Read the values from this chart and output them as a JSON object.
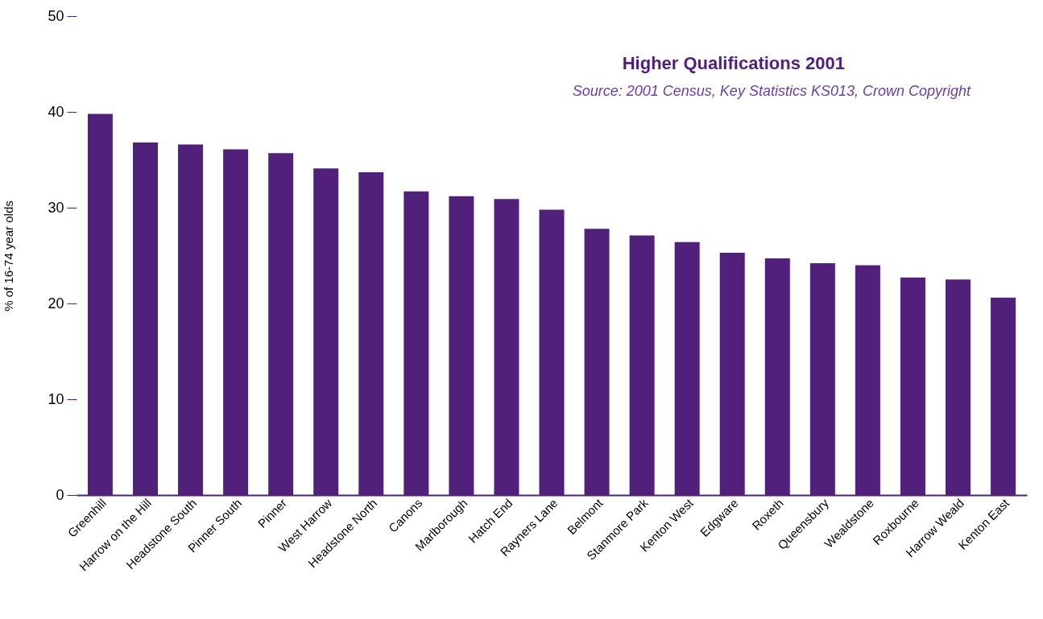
{
  "chart_data": {
    "type": "bar",
    "title": "Higher Qualifications 2001",
    "ylabel": "% of 16-74 year olds",
    "annotations": [
      "Source: 2001 Census, Key Statistics KS013, Crown Copyright"
    ],
    "categories": [
      "Greenhill",
      "Harrow on the Hill",
      "Headstone South",
      "Pinner South",
      "Pinner",
      "West Harrow",
      "Headstone North",
      "Canons",
      "Marlborough",
      "Hatch End",
      "Rayners Lane",
      "Belmont",
      "Stanmore Park",
      "Kenton West",
      "Edgware",
      "Roxeth",
      "Queensbury",
      "Wealdstone",
      "Roxbourne",
      "Harrow Weald",
      "Kenton East"
    ],
    "values": [
      39.8,
      36.8,
      36.6,
      36.1,
      35.7,
      34.1,
      33.7,
      31.7,
      31.2,
      30.9,
      29.8,
      27.8,
      27.1,
      26.4,
      25.3,
      24.7,
      24.2,
      24.0,
      22.7,
      22.5,
      20.6
    ],
    "color": "#51207a",
    "ylim": [
      0,
      50
    ],
    "yticks": [
      0,
      10,
      20,
      30,
      40,
      50
    ],
    "grid": false
  }
}
